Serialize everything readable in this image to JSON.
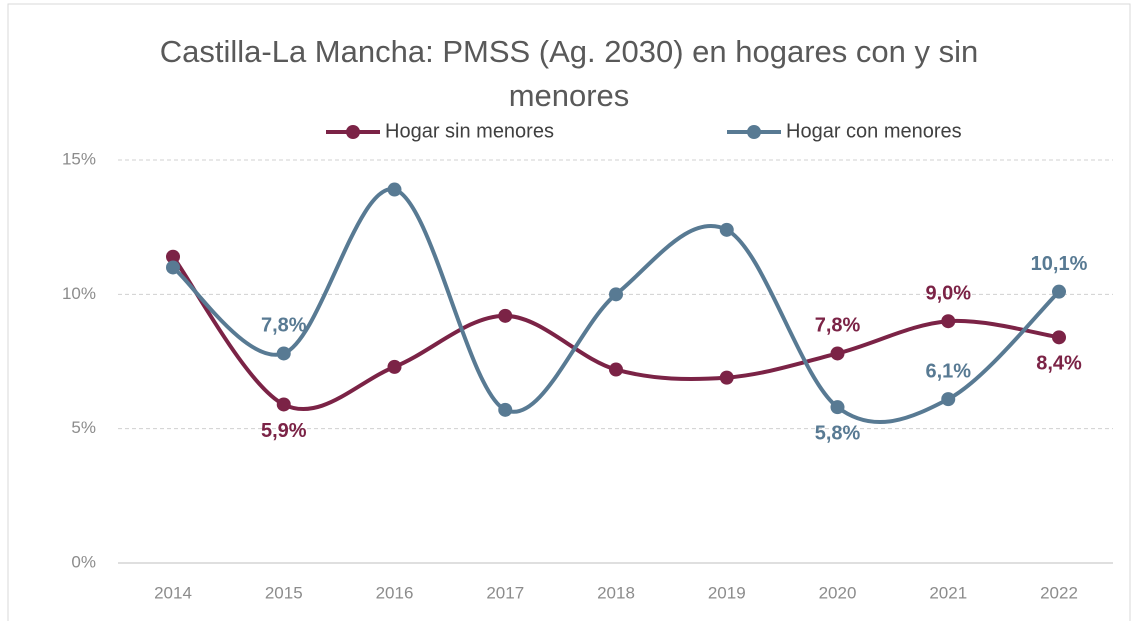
{
  "chart_data": {
    "type": "line",
    "title": "Castilla-La Mancha: PMSS (Ag. 2030) en hogares con y sin menores",
    "categories": [
      "2014",
      "2015",
      "2016",
      "2017",
      "2018",
      "2019",
      "2020",
      "2021",
      "2022"
    ],
    "series": [
      {
        "name": "Hogar sin menores",
        "color": "#7b2346",
        "values": [
          11.4,
          5.9,
          7.3,
          9.2,
          7.2,
          6.9,
          7.8,
          9.0,
          8.4
        ],
        "value_labels": [
          null,
          "5,9%",
          null,
          null,
          null,
          null,
          "7,8%",
          "9,0%",
          "8,4%"
        ]
      },
      {
        "name": "Hogar con menores",
        "color": "#587a93",
        "values": [
          11.0,
          7.8,
          13.9,
          5.7,
          10.0,
          12.4,
          5.8,
          6.1,
          10.1
        ],
        "value_labels": [
          null,
          "7,8%",
          null,
          null,
          null,
          null,
          "5,8%",
          "6,1%",
          "10,1%"
        ]
      }
    ],
    "ylim": [
      0,
      15
    ],
    "yticks": [
      {
        "value": 0,
        "label": "0%"
      },
      {
        "value": 5,
        "label": "5%"
      },
      {
        "value": 10,
        "label": "10%"
      },
      {
        "value": 15,
        "label": "15%"
      }
    ],
    "grid": true,
    "smooth": true,
    "legend": "top"
  }
}
